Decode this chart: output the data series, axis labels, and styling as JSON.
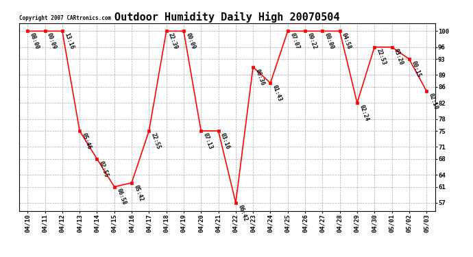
{
  "title": "Outdoor Humidity Daily High 20070504",
  "copyright": "Copyright 2007 CARtronics.com",
  "x_labels": [
    "04/10",
    "04/11",
    "04/12",
    "04/13",
    "04/14",
    "04/15",
    "04/16",
    "04/17",
    "04/18",
    "04/19",
    "04/20",
    "04/21",
    "04/22",
    "04/23",
    "04/24",
    "04/25",
    "04/26",
    "04/27",
    "04/28",
    "04/29",
    "04/30",
    "05/01",
    "05/02",
    "05/03"
  ],
  "y_values": [
    100,
    100,
    100,
    75,
    68,
    61,
    62,
    75,
    100,
    100,
    75,
    75,
    57,
    91,
    87,
    100,
    100,
    100,
    100,
    82,
    96,
    96,
    93,
    85
  ],
  "point_labels": [
    "08:00",
    "00:09",
    "13:16",
    "05:46",
    "02:55",
    "06:58",
    "05:42",
    "22:55",
    "22:39",
    "00:09",
    "07:13",
    "03:16",
    "06:42",
    "06:36",
    "01:43",
    "07:07",
    "09:22",
    "00:00",
    "04:58",
    "02:24",
    "22:53",
    "03:20",
    "00:15",
    "02:10"
  ],
  "line_color": "#FF0000",
  "marker_color": "#FF0000",
  "background_color": "#FFFFFF",
  "grid_color": "#AAAAAA",
  "yticks": [
    57,
    61,
    64,
    68,
    71,
    75,
    78,
    82,
    86,
    89,
    93,
    96,
    100
  ],
  "ylim": [
    55,
    102
  ],
  "title_fontsize": 11,
  "label_fontsize": 6.5,
  "annotation_fontsize": 6,
  "copyright_fontsize": 5.5
}
